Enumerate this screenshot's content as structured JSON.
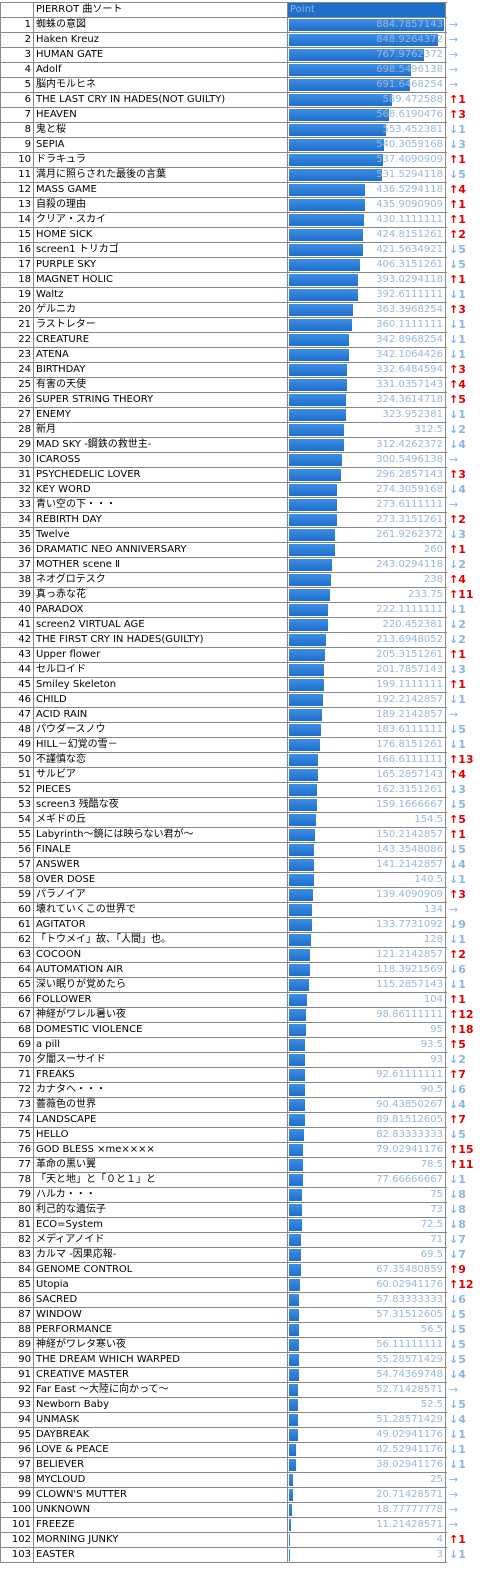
{
  "header": {
    "title": "PIERROT 曲ソート",
    "point": "Point"
  },
  "table": {
    "rows": [
      [
        1,
        "蜘蛛の意図",
        884.7857143,
        "→"
      ],
      [
        2,
        "Haken Kreuz",
        848.9264372,
        "→"
      ],
      [
        3,
        "HUMAN GATE",
        767.9762372,
        "→"
      ],
      [
        4,
        "Adolf",
        698.5496138,
        "→"
      ],
      [
        5,
        "脳内モルヒネ",
        691.6468254,
        "→"
      ],
      [
        6,
        "THE LAST CRY IN HADES(NOT GUILTY)",
        589.472588,
        "↑1"
      ],
      [
        7,
        "HEAVEN",
        568.6190476,
        "↑3"
      ],
      [
        8,
        "鬼と桜",
        553.452381,
        "↓1"
      ],
      [
        9,
        "SEPIA",
        540.3059168,
        "↓3"
      ],
      [
        10,
        "ドラキュラ",
        537.4090909,
        "↑1"
      ],
      [
        11,
        "満月に照らされた最後の言葉",
        531.5294118,
        "↓5"
      ],
      [
        12,
        "MASS GAME",
        436.5294118,
        "↑4"
      ],
      [
        13,
        "自殺の理由",
        435.9090909,
        "↑1"
      ],
      [
        14,
        "クリア・スカイ",
        430.1111111,
        "↑1"
      ],
      [
        15,
        "HOME SICK",
        424.8151261,
        "↑2"
      ],
      [
        16,
        "screen1 トリカゴ",
        421.5634921,
        "↓5"
      ],
      [
        17,
        "PURPLE SKY",
        406.3151261,
        "↓5"
      ],
      [
        18,
        "MAGNET HOLIC",
        393.0294118,
        "↑1"
      ],
      [
        19,
        "Waltz",
        392.6111111,
        "↓1"
      ],
      [
        20,
        "ゲルニカ",
        363.3968254,
        "↑3"
      ],
      [
        21,
        "ラストレター",
        360.1111111,
        "↓1"
      ],
      [
        22,
        "CREATURE",
        342.8968254,
        "↓1"
      ],
      [
        23,
        "ATENA",
        342.1064426,
        "↓1"
      ],
      [
        24,
        "BIRTHDAY",
        332.6484594,
        "↑3"
      ],
      [
        25,
        "有害の天使",
        331.0357143,
        "↑4"
      ],
      [
        26,
        "SUPER STRING THEORY",
        324.3614718,
        "↑5"
      ],
      [
        27,
        "ENEMY",
        323.952381,
        "↓1"
      ],
      [
        28,
        "新月",
        312.5,
        "↓2"
      ],
      [
        29,
        "MAD SKY -鋼鉄の救世主-",
        312.4262372,
        "↓4"
      ],
      [
        30,
        "ICAROSS",
        300.5496138,
        "→"
      ],
      [
        31,
        "PSYCHEDELIC LOVER",
        296.2857143,
        "↑3"
      ],
      [
        32,
        "KEY WORD",
        274.3059168,
        "↓4"
      ],
      [
        33,
        "青い空の下・・・",
        273.6111111,
        "→"
      ],
      [
        34,
        "REBIRTH DAY",
        273.3151261,
        "↑2"
      ],
      [
        35,
        "Twelve",
        261.9262372,
        "↓3"
      ],
      [
        36,
        "DRAMATIC NEO ANNIVERSARY",
        260,
        "↑1"
      ],
      [
        37,
        "MOTHER scene Ⅱ",
        243.0294118,
        "↓2"
      ],
      [
        38,
        "ネオグロテスク",
        238,
        "↑4"
      ],
      [
        39,
        "真っ赤な花",
        233.75,
        "↑11"
      ],
      [
        40,
        "PARADOX",
        222.1111111,
        "↓1"
      ],
      [
        41,
        "screen2 VIRTUAL AGE",
        220.452381,
        "↓2"
      ],
      [
        42,
        "THE FIRST CRY IN HADES(GUILTY)",
        213.6948052,
        "↓2"
      ],
      [
        43,
        "Upper flower",
        205.3151261,
        "↑1"
      ],
      [
        44,
        "セルロイド",
        201.7857143,
        "↓3"
      ],
      [
        45,
        "Smiley Skeleton",
        199.1111111,
        "↑1"
      ],
      [
        46,
        "CHILD",
        192.2142857,
        "↓1"
      ],
      [
        47,
        "ACID RAIN",
        189.2142857,
        "→"
      ],
      [
        48,
        "パウダースノウ",
        183.6111111,
        "↓5"
      ],
      [
        49,
        "HILL－幻覚の雪－",
        176.8151261,
        "↓1"
      ],
      [
        50,
        "不謹慎な恋",
        166.6111111,
        "↑13"
      ],
      [
        51,
        "サルビア",
        165.2857143,
        "↑4"
      ],
      [
        52,
        "PIECES",
        162.3151261,
        "↓3"
      ],
      [
        53,
        "screen3 残酷な夜",
        159.1666667,
        "↓5"
      ],
      [
        54,
        "メギドの丘",
        154.5,
        "↑5"
      ],
      [
        55,
        "Labyrinth～鏡には映らない君が～",
        150.2142857,
        "↑1"
      ],
      [
        56,
        "FINALE",
        143.3548086,
        "↓5"
      ],
      [
        57,
        "ANSWER",
        141.2142857,
        "↓4"
      ],
      [
        58,
        "OVER DOSE",
        140.5,
        "↓1"
      ],
      [
        59,
        "パラノイア",
        139.4090909,
        "↑3"
      ],
      [
        60,
        "壊れていくこの世界で",
        134,
        "→"
      ],
      [
        61,
        "AGITATOR",
        133.7731092,
        "↓9"
      ],
      [
        62,
        "「トウメイ」故、「人間」也。",
        128,
        "↓1"
      ],
      [
        63,
        "COCOON",
        121.2142857,
        "↑2"
      ],
      [
        64,
        "AUTOMATION AIR",
        118.3921569,
        "↓6"
      ],
      [
        65,
        "深い眠りが覚めたら",
        115.2857143,
        "↓1"
      ],
      [
        66,
        "FOLLOWER",
        104,
        "↑1"
      ],
      [
        67,
        "神経がワレル暑い夜",
        98.86111111,
        "↑12"
      ],
      [
        68,
        "DOMESTIC VIOLENCE",
        95,
        "↑18"
      ],
      [
        69,
        "a pill",
        93.5,
        "↑5"
      ],
      [
        70,
        "夕闇スーサイド",
        93,
        "↓2"
      ],
      [
        71,
        "FREAKS",
        92.61111111,
        "↑7"
      ],
      [
        72,
        "カナタへ・・・",
        90.5,
        "↓6"
      ],
      [
        73,
        "薔薇色の世界",
        90.43850267,
        "↓4"
      ],
      [
        74,
        "LANDSCAPE",
        89.81512605,
        "↑7"
      ],
      [
        75,
        "HELLO",
        82.83333333,
        "↓5"
      ],
      [
        76,
        "GOD BLESS ×me××××",
        79.02941176,
        "↑15"
      ],
      [
        77,
        "革命の黒い翼",
        78.5,
        "↑11"
      ],
      [
        78,
        "「天と地」と「０と１」と",
        77.66666667,
        "↓1"
      ],
      [
        79,
        "ハルカ・・・",
        75,
        "↓8"
      ],
      [
        80,
        "利己的な遺伝子",
        73,
        "↓8"
      ],
      [
        81,
        "ECO=System",
        72.5,
        "↓8"
      ],
      [
        82,
        "メディアノイド",
        71,
        "↓7"
      ],
      [
        83,
        "カルマ -因果応報-",
        69.5,
        "↓7"
      ],
      [
        84,
        "GENOME CONTROL",
        67.35480859,
        "↑9"
      ],
      [
        85,
        "Utopia",
        60.02941176,
        "↑12"
      ],
      [
        86,
        "SACRED",
        57.83333333,
        "↓6"
      ],
      [
        87,
        "WINDOW",
        57.31512605,
        "↓5"
      ],
      [
        88,
        "PERFORMANCE",
        56.5,
        "↓5"
      ],
      [
        89,
        "神経がワレタ寒い夜",
        56.11111111,
        "↓5"
      ],
      [
        90,
        "THE DREAM WHICH WARPED",
        55.28571429,
        "↓5"
      ],
      [
        91,
        "CREATIVE MASTER",
        54.74369748,
        "↓4"
      ],
      [
        92,
        "Far East ～大陸に向かって～",
        52.71428571,
        "→"
      ],
      [
        93,
        "Newborn Baby",
        52.5,
        "↓5"
      ],
      [
        94,
        "UNMASK",
        51.28571429,
        "↓4"
      ],
      [
        95,
        "DAYBREAK",
        49.02941176,
        "↓1"
      ],
      [
        96,
        "LOVE & PEACE",
        42.52941176,
        "↓1"
      ],
      [
        97,
        "BELIEVER",
        38.02941176,
        "↓1"
      ],
      [
        98,
        "MYCLOUD",
        25,
        "→"
      ],
      [
        99,
        "CLOWN'S MUTTER",
        20.71428571,
        "→"
      ],
      [
        100,
        "UNKNOWN",
        18.77777778,
        "→"
      ],
      [
        101,
        "FREEZE",
        11.21428571,
        "→"
      ],
      [
        102,
        "MORNING JUNKY",
        4,
        "↑1"
      ],
      [
        103,
        "EASTER",
        3,
        "↓1"
      ]
    ]
  }
}
